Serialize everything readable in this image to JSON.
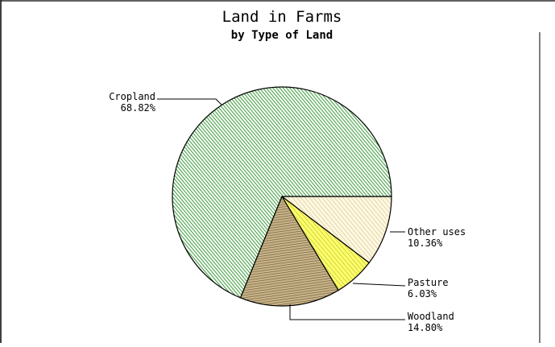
{
  "chart_data": {
    "type": "pie",
    "title": "Land in Farms",
    "subtitle": "by Type of Land",
    "slices": [
      {
        "label": "Cropland",
        "value": 68.82,
        "value_label": "68.82%",
        "color": "#3f9e3f",
        "background": "#ffffff",
        "pattern": "diagonal-dense"
      },
      {
        "label": "Other uses",
        "value": 10.36,
        "value_label": "10.36%",
        "color": "#c9b38a",
        "background": "#fff9e0",
        "pattern": "diagonal-light"
      },
      {
        "label": "Pasture",
        "value": 6.03,
        "value_label": "6.03%",
        "color": "#a8a83a",
        "background": "#ffff66",
        "pattern": "diagonal"
      },
      {
        "label": "Woodland",
        "value": 14.8,
        "value_label": "14.80%",
        "color": "#6b5530",
        "background": "#c8b48a",
        "pattern": "horizontal"
      }
    ],
    "start_angle": "3 o'clock",
    "direction": "clockwise from Other uses"
  }
}
